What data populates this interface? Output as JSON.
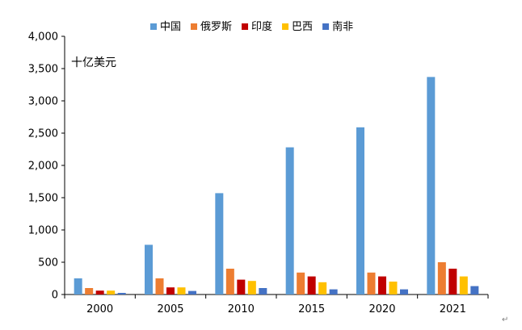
{
  "chart_data": {
    "type": "bar",
    "title": "",
    "xlabel": "",
    "ylabel": "十亿美元",
    "categories": [
      "2000",
      "2005",
      "2010",
      "2015",
      "2020",
      "2021"
    ],
    "series": [
      {
        "name": "中国",
        "color": "#5b9bd5",
        "values": [
          250,
          770,
          1570,
          2280,
          2590,
          3370
        ]
      },
      {
        "name": "俄罗斯",
        "color": "#ed7d31",
        "values": [
          100,
          250,
          400,
          340,
          340,
          500
        ]
      },
      {
        "name": "印度",
        "color": "#c00000",
        "values": [
          60,
          110,
          230,
          280,
          280,
          400
        ]
      },
      {
        "name": "巴西",
        "color": "#ffc000",
        "values": [
          60,
          110,
          210,
          190,
          200,
          280
        ]
      },
      {
        "name": "南非",
        "color": "#4472c4",
        "values": [
          25,
          55,
          100,
          80,
          80,
          130
        ]
      }
    ],
    "ylim": [
      0,
      4000
    ],
    "yticks": [
      0,
      500,
      1000,
      1500,
      2000,
      2500,
      3000,
      3500,
      4000
    ],
    "ytick_labels": [
      "0",
      "500",
      "1,000",
      "1,500",
      "2,000",
      "2,500",
      "3,000",
      "3,500",
      "4,000"
    ],
    "grid": false,
    "legend_position": "top"
  },
  "page_mark": "↵"
}
